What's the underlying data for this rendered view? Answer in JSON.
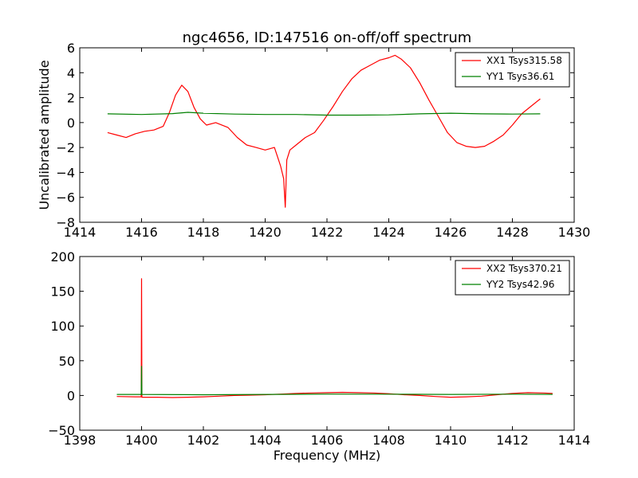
{
  "figure": {
    "title": "ngc4656, ID:147516 on-off/off spectrum"
  },
  "chart_data": [
    {
      "type": "line",
      "title": "ngc4656, ID:147516 on-off/off spectrum",
      "xlabel": "",
      "ylabel": "Uncalibrated amplitude",
      "xlim": [
        1414,
        1430
      ],
      "ylim": [
        -8,
        6
      ],
      "xticks": [
        1414,
        1416,
        1418,
        1420,
        1422,
        1424,
        1426,
        1428,
        1430
      ],
      "yticks": [
        -8,
        -6,
        -4,
        -2,
        0,
        2,
        4,
        6
      ],
      "grid": false,
      "legend": "top-right",
      "series": [
        {
          "name": "XX1 Tsys315.58",
          "color": "#ff0000",
          "x": [
            1414.9,
            1415.2,
            1415.5,
            1415.8,
            1416.1,
            1416.4,
            1416.7,
            1416.9,
            1417.1,
            1417.3,
            1417.5,
            1417.7,
            1417.9,
            1418.1,
            1418.4,
            1418.8,
            1419.1,
            1419.4,
            1419.7,
            1420.0,
            1420.3,
            1420.5,
            1420.6,
            1420.65,
            1420.7,
            1420.8,
            1421.0,
            1421.3,
            1421.6,
            1421.9,
            1422.2,
            1422.5,
            1422.8,
            1423.1,
            1423.4,
            1423.7,
            1424.0,
            1424.2,
            1424.4,
            1424.7,
            1425.0,
            1425.3,
            1425.6,
            1425.9,
            1426.2,
            1426.5,
            1426.8,
            1427.1,
            1427.4,
            1427.7,
            1428.0,
            1428.3,
            1428.6,
            1428.9
          ],
          "y": [
            -0.8,
            -1.0,
            -1.2,
            -0.9,
            -0.7,
            -0.6,
            -0.3,
            0.8,
            2.2,
            3.0,
            2.5,
            1.2,
            0.3,
            -0.2,
            0.0,
            -0.4,
            -1.2,
            -1.8,
            -2.0,
            -2.2,
            -2.0,
            -3.5,
            -4.5,
            -6.8,
            -3.0,
            -2.2,
            -1.8,
            -1.2,
            -0.8,
            0.2,
            1.3,
            2.5,
            3.5,
            4.2,
            4.6,
            5.0,
            5.2,
            5.4,
            5.1,
            4.4,
            3.2,
            1.8,
            0.5,
            -0.8,
            -1.6,
            -1.9,
            -2.0,
            -1.9,
            -1.5,
            -1.0,
            -0.2,
            0.7,
            1.3,
            1.9
          ]
        },
        {
          "name": "YY1 Tsys36.61",
          "color": "#008000",
          "x": [
            1414.9,
            1416.0,
            1417.0,
            1417.5,
            1418.0,
            1419.0,
            1420.0,
            1421.0,
            1422.0,
            1423.0,
            1424.0,
            1425.0,
            1426.0,
            1427.0,
            1428.0,
            1428.9
          ],
          "y": [
            0.7,
            0.65,
            0.72,
            0.82,
            0.75,
            0.68,
            0.65,
            0.65,
            0.6,
            0.6,
            0.62,
            0.7,
            0.75,
            0.7,
            0.68,
            0.7
          ]
        }
      ]
    },
    {
      "type": "line",
      "title": "",
      "xlabel": "Frequency (MHz)",
      "ylabel": "",
      "xlim": [
        1398,
        1414
      ],
      "ylim": [
        -50,
        200
      ],
      "xticks": [
        1398,
        1400,
        1402,
        1404,
        1406,
        1408,
        1410,
        1412,
        1414
      ],
      "yticks": [
        -50,
        0,
        50,
        100,
        150,
        200
      ],
      "grid": false,
      "legend": "top-right",
      "series": [
        {
          "name": "XX2 Tsys370.21",
          "color": "#ff0000",
          "x": [
            1399.2,
            1399.8,
            1399.99,
            1400.0,
            1400.01,
            1400.5,
            1401.0,
            1401.5,
            1402.0,
            1402.5,
            1403.0,
            1403.5,
            1404.0,
            1404.5,
            1405.0,
            1405.5,
            1406.0,
            1406.5,
            1407.0,
            1407.5,
            1408.0,
            1408.5,
            1409.0,
            1409.5,
            1410.0,
            1410.5,
            1411.0,
            1411.5,
            1412.0,
            1412.5,
            1413.0,
            1413.3
          ],
          "y": [
            -1.5,
            -2.0,
            -2.0,
            168.0,
            -2.5,
            -2.5,
            -3.0,
            -2.5,
            -2.0,
            -1.0,
            0.0,
            0.5,
            1.0,
            2.0,
            3.0,
            3.5,
            4.0,
            4.5,
            4.0,
            3.5,
            2.5,
            1.0,
            0.0,
            -1.5,
            -2.5,
            -2.0,
            -1.0,
            1.0,
            3.0,
            4.0,
            3.5,
            3.0
          ]
        },
        {
          "name": "YY2 Tsys42.96",
          "color": "#008000",
          "x": [
            1399.2,
            1399.99,
            1400.0,
            1400.01,
            1402.0,
            1404.0,
            1406.0,
            1408.0,
            1410.0,
            1412.0,
            1413.3
          ],
          "y": [
            1.5,
            1.5,
            42.0,
            1.5,
            1.0,
            1.5,
            2.0,
            1.8,
            1.5,
            1.8,
            1.6
          ]
        }
      ]
    }
  ]
}
